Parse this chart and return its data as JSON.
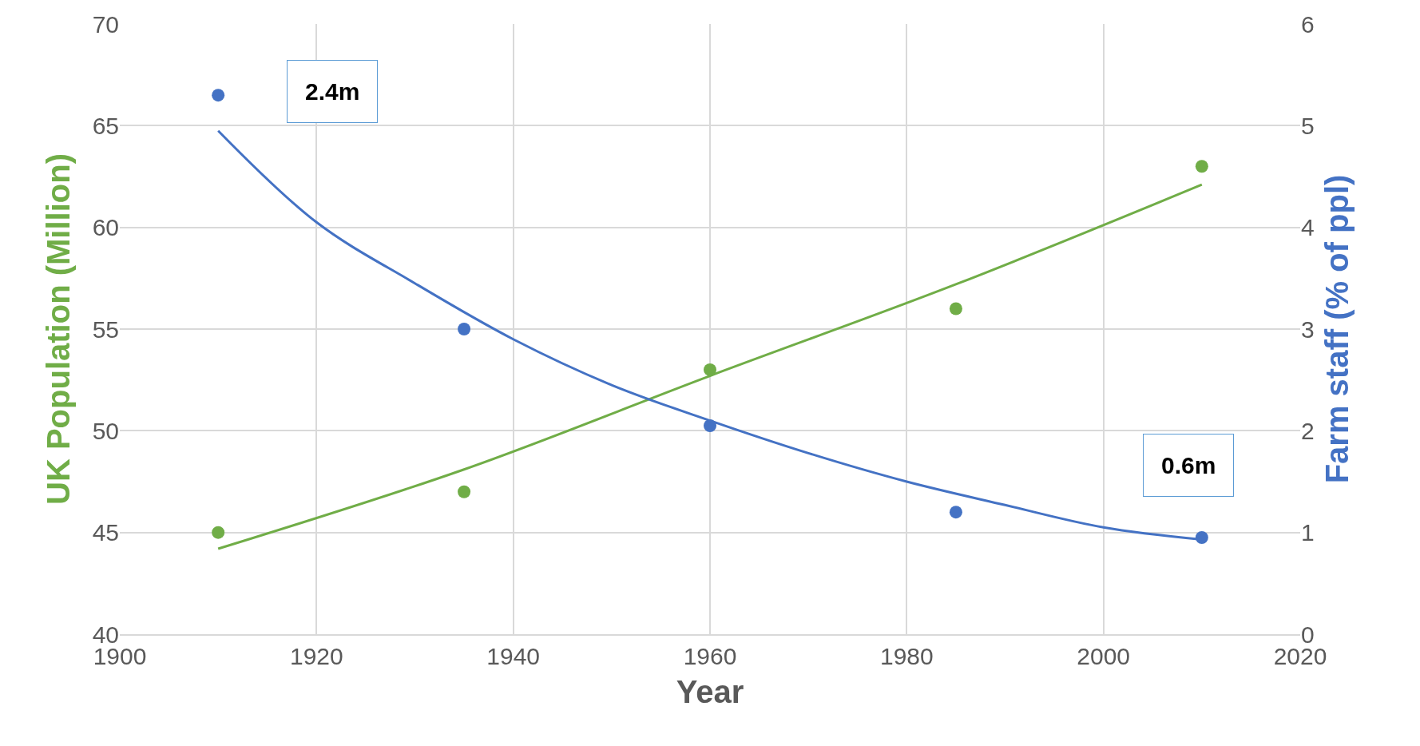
{
  "chart_data": {
    "type": "scatter",
    "xlabel": "Year",
    "ylabel": "UK Population (Million)",
    "y2label": "Farm staff (% of ppl)",
    "xlim": [
      1900,
      2020
    ],
    "xticks": [
      1900,
      1920,
      1940,
      1960,
      1980,
      2000,
      2020
    ],
    "ylim": [
      40,
      70
    ],
    "yticks": [
      40,
      45,
      50,
      55,
      60,
      65,
      70
    ],
    "y2lim": [
      0,
      6
    ],
    "y2ticks": [
      0,
      1,
      2,
      3,
      4,
      5,
      6
    ],
    "grid": true,
    "series": [
      {
        "marker": "circle",
        "color": "#70ad47",
        "x": [
          1910,
          1935,
          1960,
          1985,
          2010
        ],
        "values": [
          45,
          47,
          53,
          56,
          63
        ]
      },
      {
        "type": "line",
        "color": "#70ad47",
        "x": [
          1910,
          1935,
          1960,
          1985,
          2010
        ],
        "values": [
          44.2,
          48.1,
          52.7,
          57.2,
          62.1
        ]
      },
      {
        "marker": "circle",
        "color": "#4472c4",
        "axis": "y2",
        "x": [
          1910,
          1935,
          1960,
          1985,
          2010
        ],
        "values": [
          5.3,
          3.0,
          2.05,
          1.2,
          0.95
        ]
      },
      {
        "type": "line",
        "color": "#4472c4",
        "axis": "y2",
        "x": [
          1910,
          1920,
          1930,
          1940,
          1950,
          1960,
          1970,
          1980,
          1990,
          2000,
          2010
        ],
        "values": [
          4.95,
          4.05,
          3.45,
          2.9,
          2.45,
          2.1,
          1.78,
          1.5,
          1.27,
          1.05,
          0.93
        ]
      }
    ],
    "annotations": [
      "2.4m",
      "0.6m"
    ]
  }
}
